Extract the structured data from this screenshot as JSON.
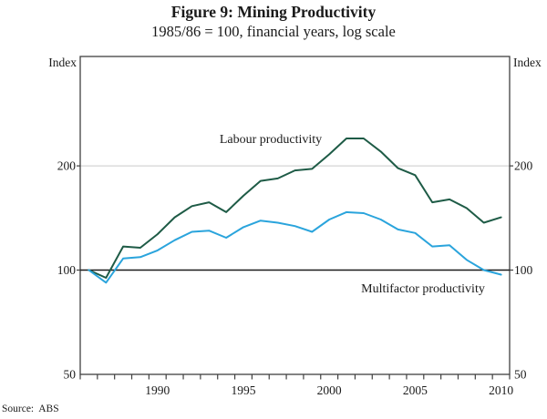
{
  "title": "Figure 9: Mining Productivity",
  "subtitle": "1985/86 = 100, financial years, log scale",
  "source": "Source:  ABS",
  "axis": {
    "left_unit": "Index",
    "right_unit": "Index",
    "y_ticks": [
      200,
      100,
      50
    ],
    "x_labels": [
      1990,
      1995,
      2000,
      2005,
      2010
    ]
  },
  "colors": {
    "labour": "#1e5b46",
    "multifactor": "#2aa4dc",
    "gridline": "#c9c9c9",
    "frame": "#404040",
    "reference_line": "#1a1a1a"
  },
  "chart_data": {
    "type": "line",
    "scale": "log",
    "title": "Figure 9: Mining Productivity",
    "subtitle": "1985/86 = 100, financial years, log scale",
    "ylabel_left": "Index",
    "ylabel_right": "Index",
    "ylim": [
      50,
      415
    ],
    "gridline_at": 200,
    "reference_line_at": 100,
    "x": [
      1986,
      1987,
      1988,
      1989,
      1990,
      1991,
      1992,
      1993,
      1994,
      1995,
      1996,
      1997,
      1998,
      1999,
      2000,
      2001,
      2002,
      2003,
      2004,
      2005,
      2006,
      2007,
      2008,
      2009,
      2010
    ],
    "series": [
      {
        "name": "Labour productivity",
        "color": "#1e5b46",
        "values": [
          100,
          95,
          117,
          116,
          127,
          142,
          153,
          157,
          147,
          164,
          181,
          184,
          194,
          196,
          216,
          240,
          240,
          220,
          197,
          188,
          157,
          160,
          151,
          137,
          142
        ]
      },
      {
        "name": "Multifactor productivity",
        "color": "#2aa4dc",
        "values": [
          100,
          92,
          108,
          109,
          114,
          122,
          129,
          130,
          124,
          133,
          139,
          137,
          134,
          129,
          140,
          147,
          146,
          140,
          131,
          128,
          117,
          118,
          107,
          100,
          97
        ]
      }
    ],
    "legend_position": "inline-annotations",
    "grid": "horizontal-at-200-only"
  }
}
